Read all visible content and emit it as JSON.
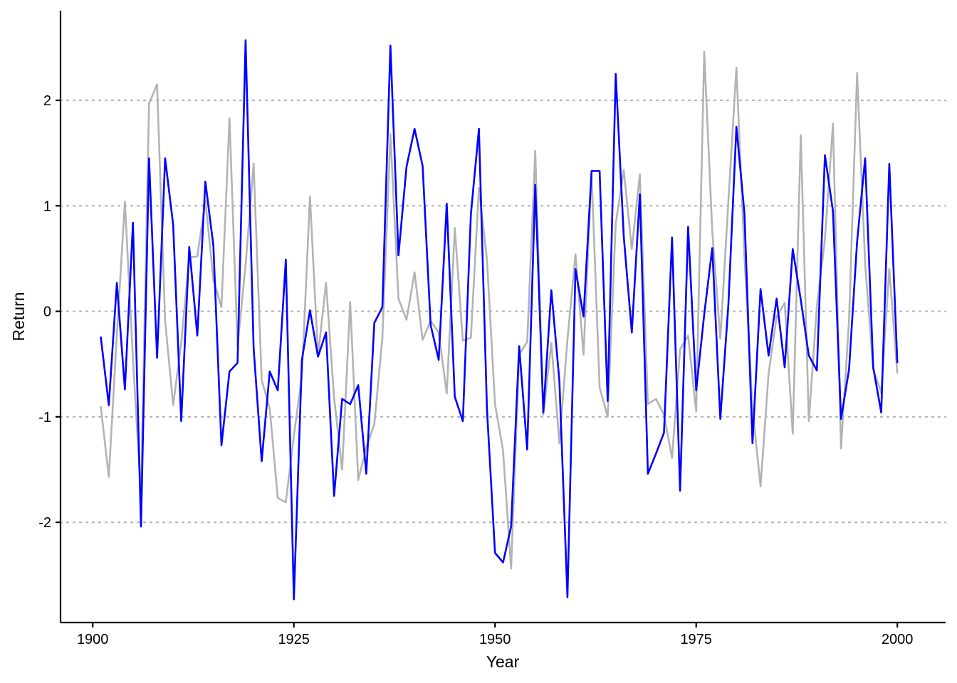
{
  "chart_data": {
    "type": "line",
    "xlabel": "Year",
    "ylabel": "Return",
    "xlim": [
      1896,
      2006
    ],
    "ylim": [
      -2.95,
      2.85
    ],
    "x_ticks": [
      1900,
      1925,
      1950,
      1975,
      2000
    ],
    "x_tick_labels": [
      "1900",
      "1925",
      "1950",
      "1975",
      "2000"
    ],
    "y_ticks": [
      -2,
      -1,
      0,
      1,
      2
    ],
    "y_tick_labels": [
      "-2",
      "-1",
      "0",
      "1",
      "2"
    ],
    "grid": "horizontal dotted at y ticks",
    "legend": "none",
    "x": [
      1901,
      1902,
      1903,
      1904,
      1905,
      1906,
      1907,
      1908,
      1909,
      1910,
      1911,
      1912,
      1913,
      1914,
      1915,
      1916,
      1917,
      1918,
      1919,
      1920,
      1921,
      1922,
      1923,
      1924,
      1925,
      1926,
      1927,
      1928,
      1929,
      1930,
      1931,
      1932,
      1933,
      1934,
      1935,
      1936,
      1937,
      1938,
      1939,
      1940,
      1941,
      1942,
      1943,
      1944,
      1945,
      1946,
      1947,
      1948,
      1949,
      1950,
      1951,
      1952,
      1953,
      1954,
      1955,
      1956,
      1957,
      1958,
      1959,
      1960,
      1961,
      1962,
      1963,
      1964,
      1965,
      1966,
      1967,
      1968,
      1969,
      1970,
      1971,
      1972,
      1973,
      1974,
      1975,
      1976,
      1977,
      1978,
      1979,
      1980,
      1981,
      1982,
      1983,
      1984,
      1985,
      1986,
      1987,
      1988,
      1989,
      1990,
      1991,
      1992,
      1993,
      1994,
      1995,
      1996,
      1997,
      1998,
      1999,
      2000
    ],
    "series": [
      {
        "color": "#0000ff",
        "values": [
          -0.24,
          -0.89,
          0.27,
          -0.74,
          0.84,
          -2.04,
          1.45,
          -0.44,
          1.45,
          0.82,
          -1.04,
          0.61,
          -0.23,
          1.23,
          0.62,
          -1.27,
          -0.57,
          -0.49,
          2.57,
          -0.35,
          -1.42,
          -0.57,
          -0.75,
          0.49,
          -2.73,
          -0.46,
          0.01,
          -0.43,
          -0.2,
          -1.75,
          -0.83,
          -0.88,
          -0.7,
          -1.54,
          -0.11,
          0.04,
          2.52,
          0.53,
          1.37,
          1.73,
          1.38,
          -0.13,
          -0.46,
          1.02,
          -0.81,
          -1.04,
          0.92,
          1.73,
          -0.93,
          -2.29,
          -2.38,
          -2.04,
          -0.33,
          -1.31,
          1.2,
          -0.96,
          0.2,
          -0.66,
          -2.71,
          0.4,
          -0.05,
          1.33,
          1.33,
          -0.85,
          2.25,
          0.71,
          -0.2,
          1.11,
          -1.54,
          -1.35,
          -1.15,
          0.7,
          -1.7,
          0.8,
          -0.75,
          -0.03,
          0.6,
          -1.02,
          0.06,
          1.75,
          0.93,
          -1.25,
          0.21,
          -0.42,
          0.12,
          -0.53,
          0.59,
          0.11,
          -0.42,
          -0.56,
          1.48,
          0.95,
          -1.02,
          -0.55,
          0.66,
          1.45,
          -0.53,
          -0.96,
          1.4,
          -0.49
        ]
      },
      {
        "color": "#b3b3b3",
        "values": [
          -0.9,
          -1.57,
          -0.22,
          1.04,
          -0.45,
          -1.76,
          1.97,
          2.15,
          -0.09,
          -0.89,
          -0.3,
          0.51,
          0.52,
          1.05,
          0.3,
          0.04,
          1.83,
          -0.33,
          0.44,
          1.4,
          -0.65,
          -0.92,
          -1.77,
          -1.81,
          -1.18,
          -0.61,
          1.09,
          -0.42,
          0.27,
          -0.82,
          -1.5,
          0.09,
          -1.6,
          -1.29,
          -1.07,
          -0.25,
          1.68,
          0.12,
          -0.08,
          0.37,
          -0.27,
          -0.09,
          -0.2,
          -0.78,
          0.79,
          -0.28,
          -0.25,
          1.17,
          0.49,
          -0.88,
          -1.32,
          -2.44,
          -0.41,
          -0.29,
          1.52,
          -0.98,
          -0.3,
          -1.25,
          -0.27,
          0.54,
          -0.41,
          1.31,
          -0.72,
          -1.0,
          0.83,
          1.34,
          0.59,
          1.3,
          -0.88,
          -0.83,
          -0.98,
          -1.39,
          -0.36,
          -0.23,
          -0.95,
          2.46,
          0.76,
          -0.26,
          1.04,
          2.31,
          0.52,
          -0.92,
          -1.66,
          -0.59,
          -0.05,
          0.08,
          -1.16,
          1.67,
          -1.04,
          0.05,
          0.68,
          1.78,
          -1.3,
          -0.08,
          2.26,
          0.45,
          -0.55,
          -0.77,
          0.4,
          -0.59
        ]
      }
    ]
  }
}
